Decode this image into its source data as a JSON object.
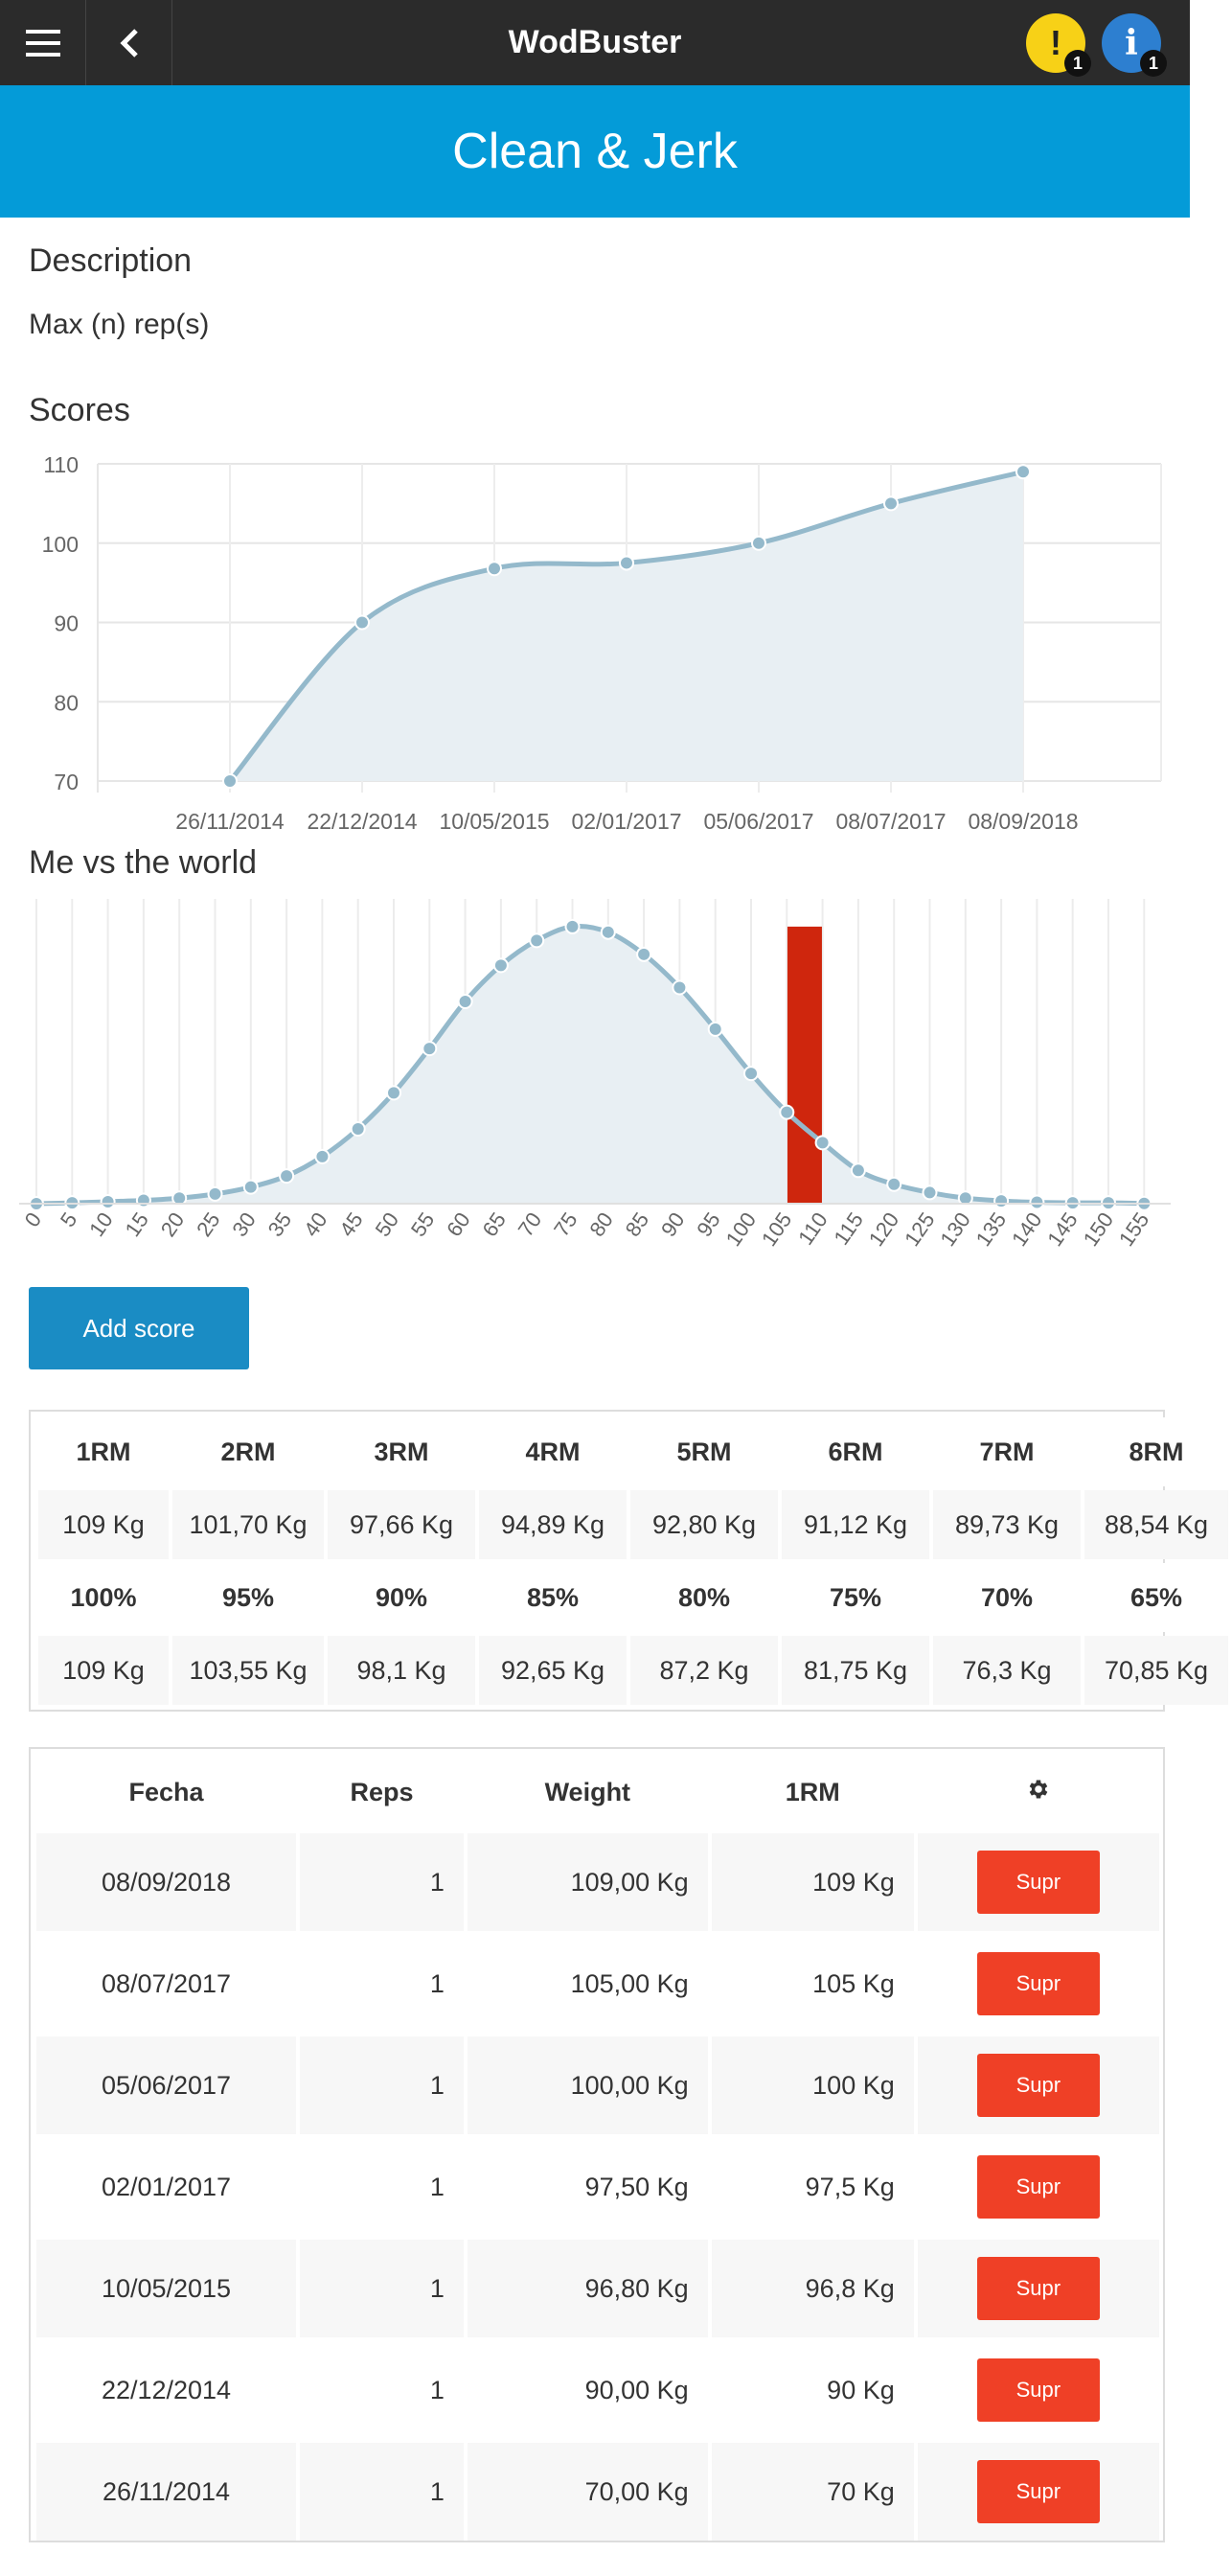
{
  "topbar": {
    "title": "WodBuster",
    "menu_icon": "hamburger-icon",
    "back_icon": "chevron-left-icon",
    "warning_glyph": "!",
    "warning_count": "1",
    "info_glyph": "i",
    "info_count": "1"
  },
  "banner": {
    "title": "Clean & Jerk"
  },
  "description": {
    "heading": "Description",
    "text": "Max (n) rep(s)"
  },
  "scores": {
    "heading": "Scores",
    "chart_data": {
      "type": "area",
      "x": [
        "26/11/2014",
        "22/12/2014",
        "10/05/2015",
        "02/01/2017",
        "05/06/2017",
        "08/07/2017",
        "08/09/2018"
      ],
      "values": [
        70,
        90,
        96.8,
        97.5,
        100,
        105,
        109
      ],
      "ylim": [
        70,
        110
      ],
      "yticks": [
        70,
        80,
        90,
        100,
        110
      ],
      "grid": true,
      "line_color": "#94b9cb",
      "fill_color": "#e8eff3"
    }
  },
  "world": {
    "heading": "Me vs the world",
    "chart_data": {
      "type": "area",
      "x": [
        "0",
        "5",
        "10",
        "15",
        "20",
        "25",
        "30",
        "35",
        "40",
        "45",
        "50",
        "55",
        "60",
        "65",
        "70",
        "75",
        "80",
        "85",
        "90",
        "95",
        "100",
        "105",
        "110",
        "115",
        "120",
        "125",
        "130",
        "135",
        "140",
        "145",
        "150",
        "155"
      ],
      "values": [
        0,
        0.3,
        0.7,
        1.2,
        2,
        3.5,
        6,
        10,
        17,
        27,
        40,
        56,
        73,
        86,
        95,
        100,
        98,
        90,
        78,
        63,
        47,
        33,
        22,
        12,
        7,
        4,
        2,
        1,
        0.5,
        0.3,
        0.3,
        0.1
      ],
      "ylim": [
        0,
        110
      ],
      "highlight": {
        "x": "105",
        "value": 100,
        "color": "#cc1a00"
      },
      "line_color": "#94b9cb",
      "fill_color": "#e8eff3"
    }
  },
  "add_score_label": "Add score",
  "rm_table": {
    "rows": [
      [
        "1RM",
        "2RM",
        "3RM",
        "4RM",
        "5RM",
        "6RM",
        "7RM",
        "8RM"
      ],
      [
        "109 Kg",
        "101,70 Kg",
        "97,66 Kg",
        "94,89 Kg",
        "92,80 Kg",
        "91,12 Kg",
        "89,73 Kg",
        "88,54 Kg"
      ],
      [
        "100%",
        "95%",
        "90%",
        "85%",
        "80%",
        "75%",
        "70%",
        "65%"
      ],
      [
        "109 Kg",
        "103,55 Kg",
        "98,1 Kg",
        "92,65 Kg",
        "87,2 Kg",
        "81,75 Kg",
        "76,3 Kg",
        "70,85 Kg"
      ]
    ]
  },
  "scores_table": {
    "headers": [
      "Fecha",
      "Reps",
      "Weight",
      "1RM"
    ],
    "settings_icon": "gear-icon",
    "delete_label": "Supr",
    "rows": [
      [
        "08/09/2018",
        "1",
        "109,00 Kg",
        "109 Kg"
      ],
      [
        "08/07/2017",
        "1",
        "105,00 Kg",
        "105 Kg"
      ],
      [
        "05/06/2017",
        "1",
        "100,00 Kg",
        "100 Kg"
      ],
      [
        "02/01/2017",
        "1",
        "97,50 Kg",
        "97,5 Kg"
      ],
      [
        "10/05/2015",
        "1",
        "96,80 Kg",
        "96,8 Kg"
      ],
      [
        "22/12/2014",
        "1",
        "90,00 Kg",
        "90 Kg"
      ],
      [
        "26/11/2014",
        "1",
        "70,00 Kg",
        "70 Kg"
      ]
    ]
  }
}
